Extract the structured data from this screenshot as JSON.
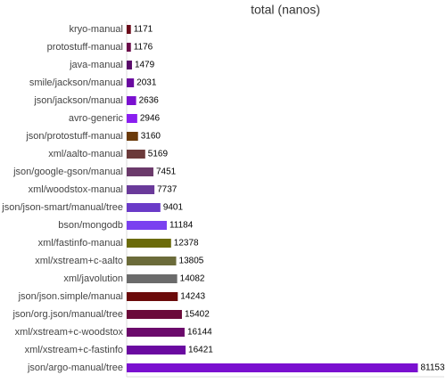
{
  "chart_data": {
    "type": "hbar",
    "title": "total (nanos)",
    "categories": [
      "kryo-manual",
      "protostuff-manual",
      "java-manual",
      "smile/jackson/manual",
      "json/jackson/manual",
      "avro-generic",
      "json/protostuff-manual",
      "xml/aalto-manual",
      "json/google-gson/manual",
      "xml/woodstox-manual",
      "json/json-smart/manual/tree",
      "bson/mongodb",
      "xml/fastinfo-manual",
      "xml/xstream+c-aalto",
      "xml/javolution",
      "json/json.simple/manual",
      "json/org.json/manual/tree",
      "xml/xstream+c-woodstox",
      "xml/xstream+c-fastinfo",
      "json/argo-manual/tree"
    ],
    "values": [
      1171,
      1176,
      1479,
      2031,
      2636,
      2946,
      3160,
      5169,
      7451,
      7737,
      9401,
      11184,
      12378,
      13805,
      14082,
      14243,
      15402,
      16144,
      16421,
      81153
    ],
    "colors": [
      "#6b0a1a",
      "#6b0a4a",
      "#5a0a6b",
      "#6a0aa0",
      "#7a10d0",
      "#8a1ef0",
      "#6b3a0a",
      "#6b3a3a",
      "#6b3a6b",
      "#6a3a9a",
      "#6a3ac8",
      "#7a40f0",
      "#6b6b0a",
      "#6b6b3a",
      "#6b6b6b",
      "#6b0a0a",
      "#6b0a3a",
      "#6b0a6b",
      "#6a0aa0",
      "#7a10d0"
    ],
    "xlim": [
      0,
      88000
    ]
  }
}
